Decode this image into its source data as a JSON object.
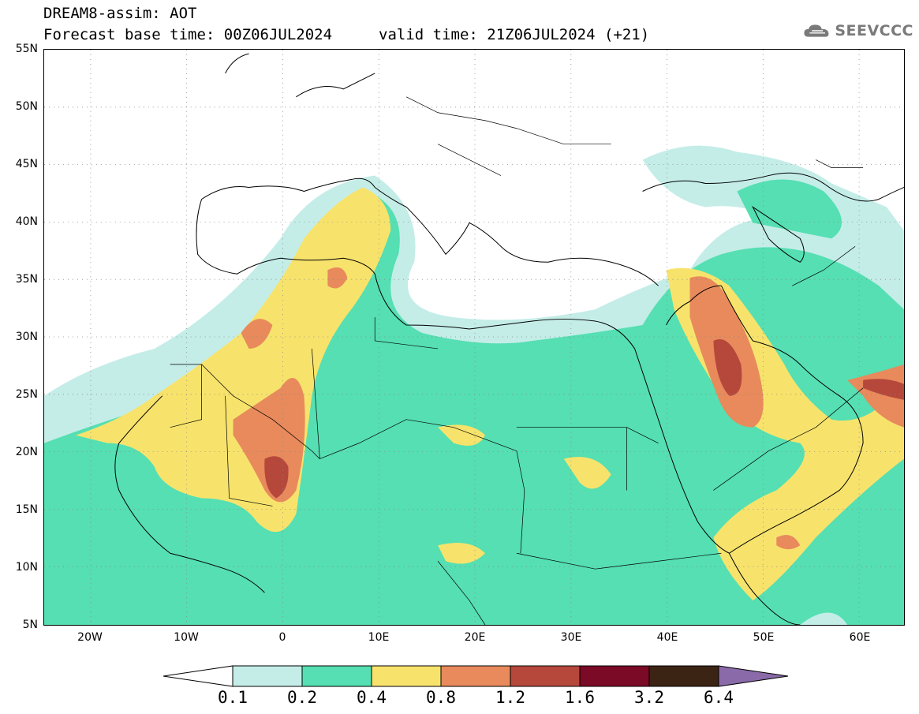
{
  "header": {
    "title_line1": "DREAM8-assim: AOT",
    "title_base": "Forecast base time: 00Z06JUL2024",
    "title_valid": "valid time: 21Z06JUL2024 (+21)"
  },
  "logo": {
    "text": "SEEVCCC",
    "icon": "cloud-icon"
  },
  "map": {
    "lat_labels": [
      "55N",
      "50N",
      "45N",
      "40N",
      "35N",
      "30N",
      "25N",
      "20N",
      "15N",
      "10N",
      "5N"
    ],
    "lon_labels": [
      "20W",
      "10W",
      "0",
      "10E",
      "20E",
      "30E",
      "40E",
      "50E",
      "60E"
    ]
  },
  "legend": {
    "labels": [
      "0.1",
      "0.2",
      "0.4",
      "0.8",
      "1.2",
      "1.6",
      "3.2",
      "6.4"
    ],
    "colors": [
      "#ffffff",
      "#c4ede8",
      "#55dfb2",
      "#f7e36c",
      "#e88a5c",
      "#b5483b",
      "#7a0a25",
      "#3c2415",
      "#8a6aa8"
    ]
  }
}
